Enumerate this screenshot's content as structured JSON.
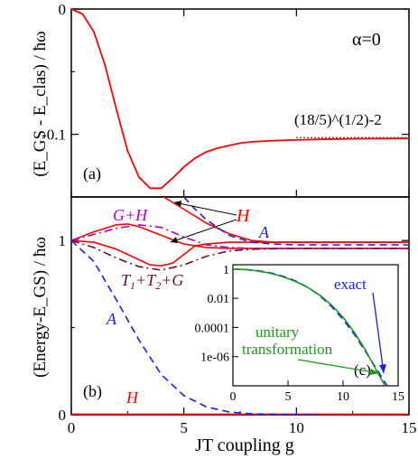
{
  "chart_data": [
    {
      "id": "a",
      "type": "line",
      "panel_label": "(a)",
      "ylabel": "(E_GS - E_clas) / ħω",
      "annotation_alpha": "α=0",
      "annotation_limit": "(18/5)^(1/2)-2",
      "xlim": [
        0,
        15
      ],
      "ylim": [
        -0.15,
        0
      ],
      "yticks": [
        "0",
        "-0.1"
      ],
      "series": [
        {
          "name": "",
          "color": "#ff0000",
          "x": [
            0,
            0.5,
            1,
            1.5,
            2,
            2.5,
            3,
            3.5,
            4,
            4.5,
            5,
            5.5,
            6,
            6.5,
            7,
            7.5,
            8,
            9,
            10,
            11,
            12,
            13,
            14,
            15
          ],
          "y": [
            0,
            -0.004,
            -0.018,
            -0.045,
            -0.08,
            -0.113,
            -0.134,
            -0.143,
            -0.143,
            -0.135,
            -0.126,
            -0.119,
            -0.114,
            -0.111,
            -0.109,
            -0.107,
            -0.106,
            -0.105,
            -0.1045,
            -0.104,
            -0.1037,
            -0.1035,
            -0.1034,
            -0.1033
          ]
        }
      ],
      "limit_line": {
        "x": [
          10,
          15
        ],
        "y": -0.1026,
        "color": "#000000"
      }
    },
    {
      "id": "b",
      "type": "line",
      "panel_label": "(b)",
      "ylabel": "(Energy-E_GS) / ħω",
      "xlabel": "JT coupling g",
      "xlim": [
        0,
        15
      ],
      "ylim": [
        0,
        1.25
      ],
      "xticks": [
        "0",
        "5",
        "10",
        "15"
      ],
      "yticks": [
        "0",
        "1"
      ],
      "series": [
        {
          "name": "H",
          "color": "#ff0000",
          "style": "solid",
          "x": [
            0,
            1,
            2,
            2.5,
            3,
            4,
            5,
            6,
            7,
            8,
            10,
            15
          ],
          "y": [
            1,
            1.05,
            1.09,
            1.095,
            1.08,
            1.03,
            0.98,
            0.96,
            0.955,
            0.955,
            0.955,
            0.955
          ]
        },
        {
          "name": "H",
          "color": "#ff0000",
          "style": "solid",
          "x": [
            0,
            1,
            2,
            3,
            3.5,
            4,
            4.5,
            5,
            5.5,
            6,
            7,
            8,
            9,
            10,
            15
          ],
          "y": [
            1,
            0.99,
            0.95,
            0.89,
            0.86,
            0.855,
            0.87,
            0.92,
            0.97,
            0.98,
            0.99,
            0.99,
            0.99,
            0.99,
            0.99
          ]
        },
        {
          "name": "H",
          "color": "#ff0000",
          "style": "solid",
          "x": [
            4.1,
            5,
            5.5,
            6,
            7,
            8,
            9,
            10,
            15
          ],
          "y": [
            1.25,
            1.18,
            1.14,
            1.1,
            1.04,
            1.0,
            0.99,
            0.99,
            0.99
          ]
        },
        {
          "name": "H",
          "color": "#ff0000",
          "style": "solid",
          "x": [
            0,
            15
          ],
          "y": [
            0.003,
            0.003
          ]
        },
        {
          "name": "G+H",
          "color": "#aa00cc",
          "style": "dashdot",
          "x": [
            0,
            1,
            2,
            3,
            4,
            5,
            6,
            7,
            8,
            10,
            15
          ],
          "y": [
            1,
            1.035,
            1.07,
            1.09,
            1.075,
            1.02,
            0.975,
            0.96,
            0.955,
            0.955,
            0.955
          ]
        },
        {
          "name": "T1+T2+G",
          "color": "#661133",
          "style": "dashdot",
          "x": [
            0,
            1,
            2,
            3,
            4,
            5,
            6,
            7,
            8,
            10,
            15
          ],
          "y": [
            1,
            0.96,
            0.9,
            0.85,
            0.83,
            0.86,
            0.91,
            0.94,
            0.95,
            0.955,
            0.955
          ]
        },
        {
          "name": "A",
          "color": "#1a1aff",
          "style": "dashed",
          "x": [
            0,
            1,
            2,
            3,
            4,
            5,
            6,
            7,
            8,
            9,
            10,
            11
          ],
          "y": [
            1,
            0.88,
            0.66,
            0.43,
            0.23,
            0.11,
            0.045,
            0.016,
            0.005,
            0.002,
            0.0005,
            0
          ]
        },
        {
          "name": "A",
          "color": "#1a1aff",
          "style": "dashed",
          "x": [
            5,
            5.5,
            6,
            7,
            8,
            9,
            10,
            12,
            15
          ],
          "y": [
            1.25,
            1.18,
            1.12,
            1.03,
            0.99,
            0.98,
            0.975,
            0.975,
            0.975
          ]
        }
      ],
      "labels": {
        "G+H": "G+H",
        "H": "H",
        "A": "A",
        "T": "T",
        "sub1": "1",
        "sub2": "2",
        "plusG": "+G",
        "plus": "+"
      },
      "inset": {
        "panel_label": "(c)",
        "type": "line",
        "scale_y": "log",
        "xlim": [
          0,
          15
        ],
        "ylim_log10": [
          -8,
          0.3
        ],
        "xticks": [
          "0",
          "5",
          "10",
          "15"
        ],
        "yticks": [
          "1",
          "0.01",
          "0.0001",
          "1e-06"
        ],
        "legend_exact": "exact",
        "legend_unitary_1": "unitary",
        "legend_unitary_2": "transformation",
        "series": [
          {
            "name": "exact",
            "color": "#1a1aff",
            "style": "dashed",
            "x": [
              0,
              1,
              2,
              3,
              4,
              5,
              6,
              7,
              8,
              9,
              10,
              11,
              12,
              13,
              14
            ],
            "log10y": [
              0,
              -0.02,
              -0.08,
              -0.19,
              -0.36,
              -0.6,
              -0.92,
              -1.35,
              -1.9,
              -2.6,
              -3.45,
              -4.45,
              -5.6,
              -6.8,
              -8
            ]
          },
          {
            "name": "unitary transformation",
            "color": "#1a9a1a",
            "style": "solid",
            "x": [
              0,
              1,
              2,
              3,
              4,
              5,
              6,
              7,
              8,
              9,
              10,
              11,
              12,
              13,
              13.8
            ],
            "log10y": [
              0,
              -0.03,
              -0.1,
              -0.22,
              -0.4,
              -0.64,
              -0.95,
              -1.35,
              -1.85,
              -2.5,
              -3.3,
              -4.3,
              -5.5,
              -6.9,
              -8
            ]
          }
        ]
      }
    }
  ]
}
